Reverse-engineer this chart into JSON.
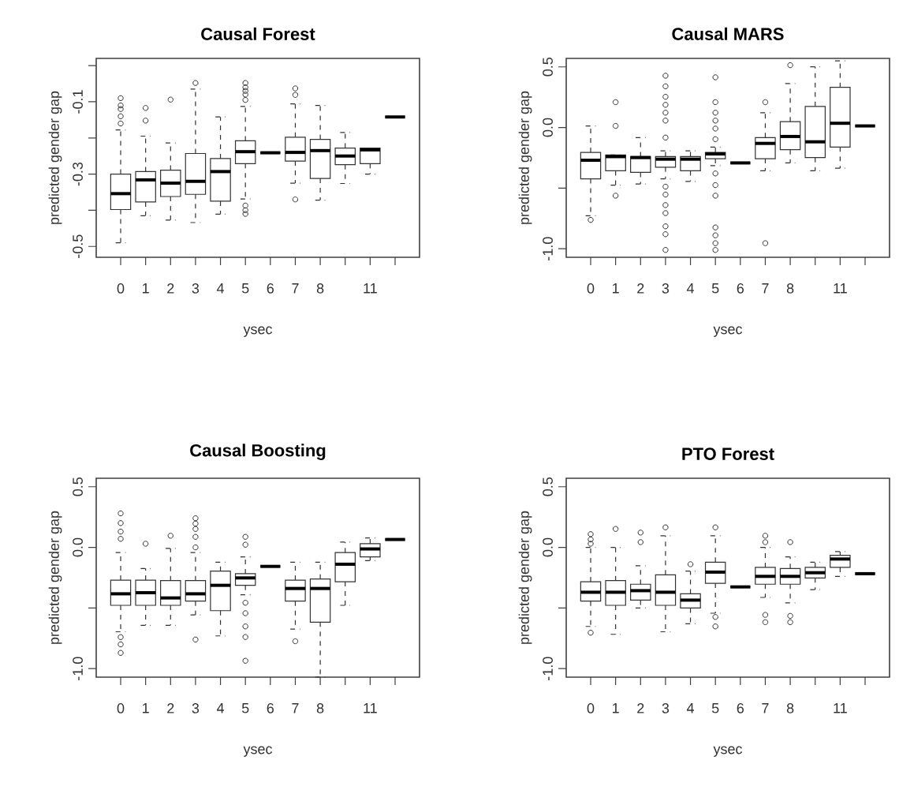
{
  "chart_data": [
    {
      "type": "box",
      "title": "Causal Forest",
      "xlabel": "ysec",
      "ylabel": "predicted gender gap",
      "categories": [
        "0",
        "1",
        "2",
        "3",
        "4",
        "5",
        "6",
        "7",
        "8",
        null,
        "11",
        null
      ],
      "ylim": [
        -0.53,
        0.02
      ],
      "yticks": [
        -0.5,
        {
          "value": -0.4,
          "label": null
        },
        -0.3,
        {
          "value": -0.2,
          "label": null
        },
        -0.1,
        {
          "value": 0,
          "label": null
        }
      ],
      "boxes": [
        {
          "low": -0.49,
          "q1": -0.398,
          "median": -0.354,
          "q3": -0.3,
          "high": -0.178,
          "outliers": [
            -0.09,
            -0.11,
            -0.12,
            -0.14,
            -0.16
          ]
        },
        {
          "low": -0.415,
          "q1": -0.377,
          "median": -0.316,
          "q3": -0.293,
          "high": -0.195,
          "outliers": [
            -0.117,
            -0.152
          ]
        },
        {
          "low": -0.427,
          "q1": -0.362,
          "median": -0.325,
          "q3": -0.289,
          "high": -0.214,
          "outliers": [
            -0.094
          ]
        },
        {
          "low": -0.434,
          "q1": -0.356,
          "median": -0.32,
          "q3": -0.243,
          "high": -0.065,
          "outliers": [
            -0.048
          ]
        },
        {
          "low": -0.411,
          "q1": -0.375,
          "median": -0.293,
          "q3": -0.257,
          "high": -0.142
        },
        {
          "low": -0.369,
          "q1": -0.271,
          "median": -0.238,
          "q3": -0.208,
          "high": -0.113,
          "outliers": [
            -0.048,
            -0.06,
            -0.07,
            -0.08,
            -0.095,
            -0.387,
            -0.4,
            -0.41
          ]
        },
        {
          "low": -0.241,
          "q1": -0.241,
          "median": -0.241,
          "q3": -0.241,
          "high": -0.241
        },
        {
          "low": -0.325,
          "q1": -0.264,
          "median": -0.24,
          "q3": -0.198,
          "high": -0.106,
          "outliers": [
            -0.063,
            -0.081,
            -0.37
          ]
        },
        {
          "low": -0.372,
          "q1": -0.312,
          "median": -0.235,
          "q3": -0.204,
          "high": -0.11
        },
        {
          "low": -0.326,
          "q1": -0.274,
          "median": -0.25,
          "q3": -0.228,
          "high": -0.185
        },
        {
          "low": -0.3,
          "q1": -0.271,
          "median": -0.233,
          "q3": -0.228,
          "high": -0.228
        },
        {
          "low": -0.142,
          "q1": -0.142,
          "median": -0.142,
          "q3": -0.142,
          "high": -0.142
        }
      ]
    },
    {
      "type": "box",
      "title": "Causal MARS",
      "xlabel": "ysec",
      "ylabel": "predicted gender gap",
      "categories": [
        "0",
        "1",
        "2",
        "3",
        "4",
        "5",
        "6",
        "7",
        "8",
        null,
        "11",
        null
      ],
      "ylim": [
        -1.07,
        0.57
      ],
      "yticks": [
        {
          "value": -1,
          "label": "-1.0"
        },
        {
          "value": -0.5,
          "label": null
        },
        {
          "value": 0,
          "label": "0.0"
        },
        0.5
      ],
      "boxes": [
        {
          "low": -0.728,
          "q1": -0.423,
          "median": -0.27,
          "q3": -0.205,
          "high": 0.013,
          "outliers": [
            -0.762
          ]
        },
        {
          "low": -0.475,
          "q1": -0.357,
          "median": -0.24,
          "q3": -0.227,
          "high": -0.227,
          "outliers": [
            0.209,
            0.013,
            -0.562
          ]
        },
        {
          "low": -0.466,
          "q1": -0.37,
          "median": -0.248,
          "q3": -0.24,
          "high": -0.083
        },
        {
          "low": -0.423,
          "q1": -0.327,
          "median": -0.261,
          "q3": -0.24,
          "high": -0.192,
          "outliers": [
            0.427,
            0.34,
            0.253,
            0.187,
            0.122,
            0.057,
            -0.083,
            -0.488,
            -0.553,
            -0.64,
            -0.706,
            -0.815,
            -0.88,
            -1.01
          ]
        },
        {
          "low": -0.444,
          "q1": -0.357,
          "median": -0.261,
          "q3": -0.24,
          "high": -0.192
        },
        {
          "low": -0.314,
          "q1": -0.257,
          "median": -0.218,
          "q3": -0.205,
          "high": -0.161,
          "outliers": [
            0.414,
            0.209,
            0.122,
            0.057,
            -0.009,
            -0.096,
            -0.379,
            -0.475,
            -0.562,
            -0.824,
            -0.889,
            -0.954,
            -1.01
          ]
        },
        {
          "low": -0.292,
          "q1": -0.292,
          "median": -0.292,
          "q3": -0.292,
          "high": -0.292
        },
        {
          "low": -0.357,
          "q1": -0.257,
          "median": -0.131,
          "q3": -0.083,
          "high": 0.122,
          "outliers": [
            0.209,
            -0.954
          ]
        },
        {
          "low": -0.292,
          "q1": -0.183,
          "median": -0.074,
          "q3": 0.048,
          "high": 0.362,
          "outliers": [
            0.514
          ]
        },
        {
          "low": -0.357,
          "q1": -0.248,
          "median": -0.118,
          "q3": 0.174,
          "high": 0.501
        },
        {
          "low": -0.336,
          "q1": -0.161,
          "median": 0.035,
          "q3": 0.331,
          "high": 0.55
        },
        {
          "low": 0.013,
          "q1": 0.013,
          "median": 0.013,
          "q3": 0.013,
          "high": 0.013
        }
      ]
    },
    {
      "type": "box",
      "title": "Causal Boosting",
      "xlabel": "ysec",
      "ylabel": "predicted gender gap",
      "categories": [
        "0",
        "1",
        "2",
        "3",
        "4",
        "5",
        "6",
        "7",
        "8",
        null,
        "11",
        null
      ],
      "ylim": [
        -1.07,
        0.57
      ],
      "yticks": [
        {
          "value": -1,
          "label": "-1.0"
        },
        {
          "value": -0.5,
          "label": null
        },
        {
          "value": 0,
          "label": "0.0"
        },
        0.5
      ],
      "boxes": [
        {
          "low": -0.696,
          "q1": -0.478,
          "median": -0.383,
          "q3": -0.27,
          "high": -0.043,
          "outliers": [
            0.28,
            0.2,
            0.13,
            0.07,
            -0.74,
            -0.8,
            -0.87
          ]
        },
        {
          "low": -0.643,
          "q1": -0.478,
          "median": -0.374,
          "q3": -0.27,
          "high": -0.174,
          "outliers": [
            0.03
          ]
        },
        {
          "low": -0.643,
          "q1": -0.478,
          "median": -0.417,
          "q3": -0.274,
          "high": -0.009,
          "outliers": [
            0.096
          ]
        },
        {
          "low": -0.557,
          "q1": -0.443,
          "median": -0.383,
          "q3": -0.274,
          "high": -0.043,
          "outliers": [
            0.24,
            0.196,
            0.152,
            0.087,
            0.0,
            -0.76
          ]
        },
        {
          "low": -0.73,
          "q1": -0.522,
          "median": -0.313,
          "q3": -0.196,
          "high": -0.122
        },
        {
          "low": -0.391,
          "q1": -0.313,
          "median": -0.252,
          "q3": -0.217,
          "high": -0.078,
          "outliers": [
            0.087,
            0.022,
            -0.457,
            -0.543,
            -0.652,
            -0.739,
            -0.935
          ]
        },
        {
          "low": -0.157,
          "q1": -0.157,
          "median": -0.157,
          "q3": -0.157,
          "high": -0.157
        },
        {
          "low": -0.674,
          "q1": -0.443,
          "median": -0.339,
          "q3": -0.27,
          "high": -0.122,
          "outliers": [
            -0.774
          ]
        },
        {
          "low": -1.07,
          "q1": -0.617,
          "median": -0.339,
          "q3": -0.261,
          "high": -0.122
        },
        {
          "low": -0.478,
          "q1": -0.283,
          "median": -0.139,
          "q3": -0.043,
          "high": 0.043
        },
        {
          "low": -0.109,
          "q1": -0.078,
          "median": -0.013,
          "q3": 0.03,
          "high": 0.078
        },
        {
          "low": 0.065,
          "q1": 0.065,
          "median": 0.065,
          "q3": 0.065,
          "high": 0.065
        }
      ]
    },
    {
      "type": "box",
      "title": "PTO Forest",
      "xlabel": "ysec",
      "ylabel": "predicted gender gap",
      "categories": [
        "0",
        "1",
        "2",
        "3",
        "4",
        "5",
        "6",
        "7",
        "8",
        null,
        "11",
        null
      ],
      "ylim": [
        -1.07,
        0.57
      ],
      "yticks": [
        {
          "value": -1,
          "label": "-1.0"
        },
        {
          "value": -0.5,
          "label": null
        },
        {
          "value": 0,
          "label": "0.0"
        },
        0.5
      ],
      "boxes": [
        {
          "low": -0.652,
          "q1": -0.443,
          "median": -0.37,
          "q3": -0.283,
          "high": 0.0,
          "outliers": [
            0.109,
            0.065,
            0.03,
            -0.704
          ]
        },
        {
          "low": -0.717,
          "q1": -0.478,
          "median": -0.37,
          "q3": -0.274,
          "high": 0.0,
          "outliers": [
            0.152
          ]
        },
        {
          "low": -0.5,
          "q1": -0.435,
          "median": -0.357,
          "q3": -0.304,
          "high": -0.152,
          "outliers": [
            0.122,
            0.043
          ]
        },
        {
          "low": -0.696,
          "q1": -0.478,
          "median": -0.37,
          "q3": -0.226,
          "high": 0.096,
          "outliers": [
            0.165
          ]
        },
        {
          "low": -0.63,
          "q1": -0.5,
          "median": -0.435,
          "q3": -0.383,
          "high": -0.196,
          "outliers": [
            -0.139
          ]
        },
        {
          "low": -0.543,
          "q1": -0.296,
          "median": -0.204,
          "q3": -0.122,
          "high": 0.096,
          "outliers": [
            0.165,
            -0.574,
            -0.652
          ]
        },
        {
          "low": -0.326,
          "q1": -0.326,
          "median": -0.326,
          "q3": -0.326,
          "high": -0.326
        },
        {
          "low": -0.413,
          "q1": -0.304,
          "median": -0.239,
          "q3": -0.165,
          "high": 0.0,
          "outliers": [
            0.096,
            0.043,
            -0.557,
            -0.617
          ]
        },
        {
          "low": -0.457,
          "q1": -0.304,
          "median": -0.239,
          "q3": -0.174,
          "high": -0.078,
          "outliers": [
            0.043,
            -0.565,
            -0.617
          ]
        },
        {
          "low": -0.348,
          "q1": -0.252,
          "median": -0.209,
          "q3": -0.165,
          "high": -0.122
        },
        {
          "low": -0.239,
          "q1": -0.165,
          "median": -0.096,
          "q3": -0.065,
          "high": -0.035
        },
        {
          "low": -0.217,
          "q1": -0.217,
          "median": -0.217,
          "q3": -0.217,
          "high": -0.217
        }
      ]
    }
  ]
}
